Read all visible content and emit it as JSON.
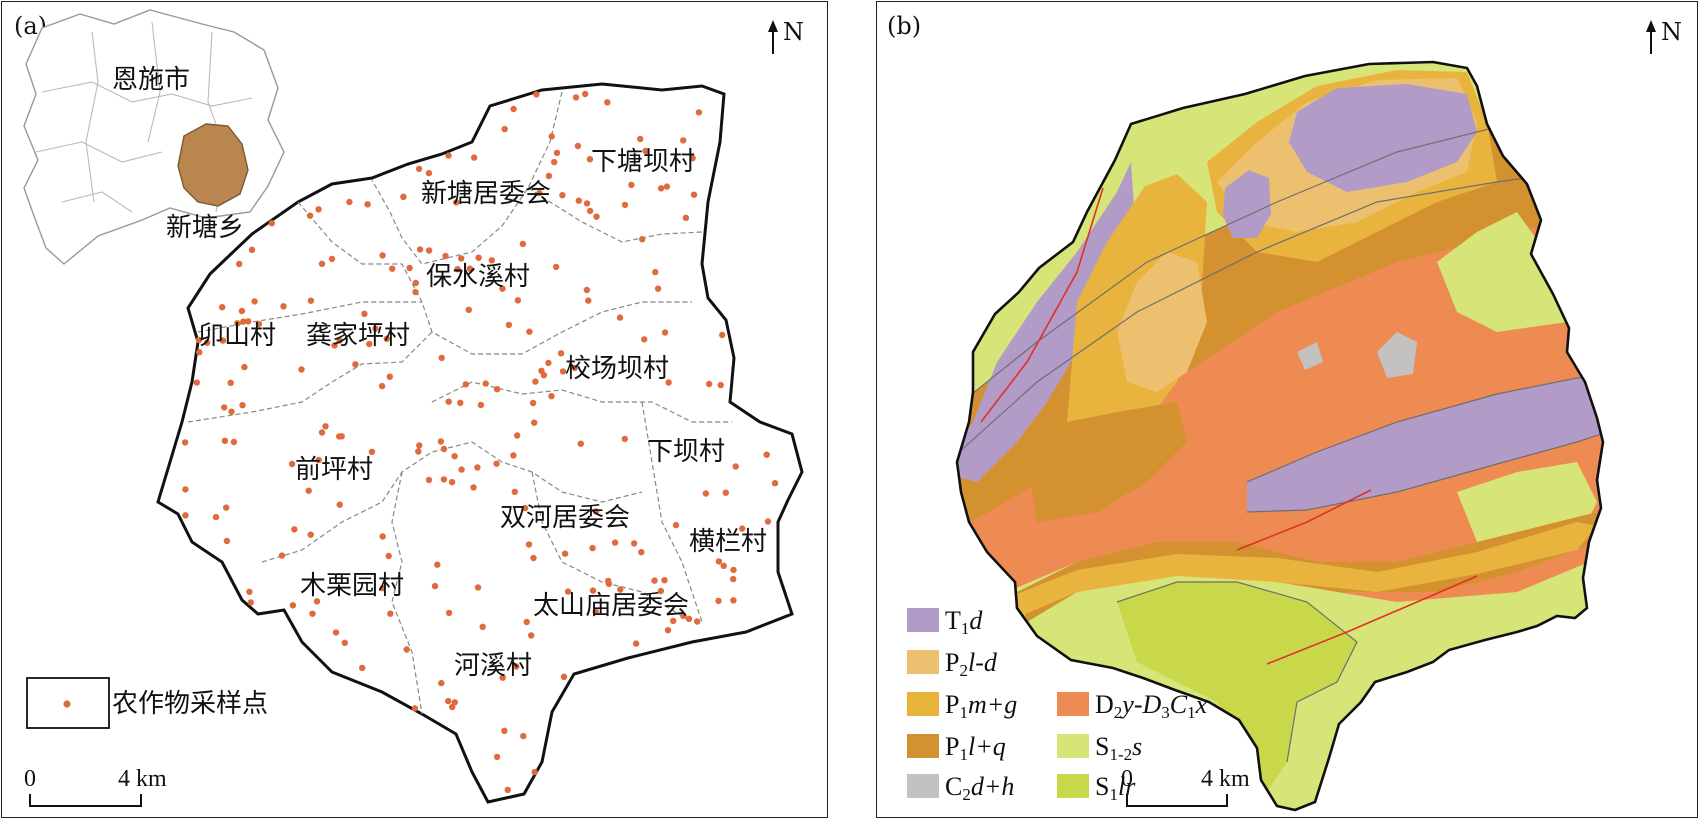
{
  "panel_a": {
    "label": "(a)",
    "north": "N",
    "inset": {
      "city": "恩施市",
      "township": "新塘乡",
      "township_color": "#b8864e"
    },
    "villages": [
      {
        "id": "xiatangba",
        "name": "下塘坝村"
      },
      {
        "id": "xintang",
        "name": "新塘居委会"
      },
      {
        "id": "baoshuixi",
        "name": "保水溪村"
      },
      {
        "id": "maoshan",
        "name": "卯山村"
      },
      {
        "id": "gongjiaping",
        "name": "龚家坪村"
      },
      {
        "id": "xiaochangba",
        "name": "校场坝村"
      },
      {
        "id": "xiaba",
        "name": "下坝村"
      },
      {
        "id": "qianping",
        "name": "前坪村"
      },
      {
        "id": "shuanghe",
        "name": "双河居委会"
      },
      {
        "id": "henglan",
        "name": "横栏村"
      },
      {
        "id": "mulizhuan",
        "name": "木栗园村"
      },
      {
        "id": "taishanmiao",
        "name": "太山庙居委会"
      },
      {
        "id": "hexi",
        "name": "河溪村"
      }
    ],
    "legend_label": "农作物采样点",
    "sample_color": "#e06a3c",
    "scale": {
      "zero": "0",
      "distance": "4 km"
    }
  },
  "panel_b": {
    "label": "(b)",
    "north": "N",
    "scale": {
      "zero": "0",
      "distance": "4 km"
    },
    "fault_color": "#e0302a",
    "units": {
      "T1d": {
        "color": "#b39bc8",
        "base": "T",
        "sub": "1",
        "rest": "d"
      },
      "P2ld": {
        "color": "#ecc06e",
        "base": "P",
        "sub": "2",
        "rest": "l-d"
      },
      "P1mg": {
        "color": "#e9b43e",
        "base": "P",
        "sub": "1",
        "rest": "m+g"
      },
      "P1lq": {
        "color": "#d39130",
        "base": "P",
        "sub": "1",
        "rest": "l+q"
      },
      "C2dh": {
        "color": "#c4c2c0",
        "base": "C",
        "sub": "2",
        "rest": "d+h"
      },
      "D2y": {
        "color": "#ee8b53",
        "base": "D",
        "sub": "2",
        "rest": "y-D",
        "sub2": "3",
        "rest2": "C",
        "sub3": "1",
        "rest3": "x"
      },
      "S12s": {
        "color": "#d7e477",
        "base": "S",
        "sub": "1-2",
        "rest": "s"
      },
      "S1lr": {
        "color": "#c9d84a",
        "base": "S",
        "sub": "1",
        "rest": "lr"
      }
    },
    "legend_order_left": [
      "T1d",
      "P2ld",
      "P1mg",
      "P1lq",
      "C2dh"
    ],
    "legend_order_right": [
      "D2y",
      "S12s",
      "S1lr"
    ]
  }
}
